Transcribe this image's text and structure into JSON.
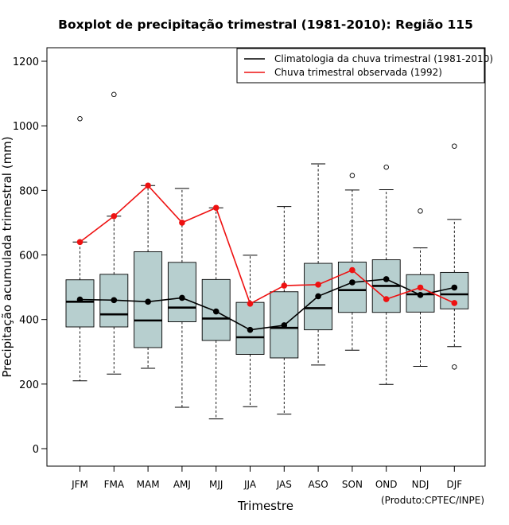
{
  "chart_data": {
    "type": "boxplot",
    "title": "Boxplot de precipitação trimestral (1981-2010): Região 115",
    "xlabel": "Trimestre",
    "ylabel": "Precipitação acumulada trimestral (mm)",
    "ylim": [
      -55,
      1240
    ],
    "yticks": [
      0,
      200,
      400,
      600,
      800,
      1000,
      1200
    ],
    "categories": [
      "JFM",
      "FMA",
      "MAM",
      "AMJ",
      "MJJ",
      "JJA",
      "JAS",
      "ASO",
      "SON",
      "OND",
      "NDJ",
      "DJF"
    ],
    "boxes": [
      {
        "q1": 377,
        "median": 455,
        "q3": 523,
        "whisker_low": 210,
        "whisker_high": 640,
        "outliers": [
          1022
        ]
      },
      {
        "q1": 377,
        "median": 416,
        "q3": 540,
        "whisker_low": 231,
        "whisker_high": 720,
        "outliers": [
          1097
        ]
      },
      {
        "q1": 313,
        "median": 397,
        "q3": 610,
        "whisker_low": 249,
        "whisker_high": 815,
        "outliers": []
      },
      {
        "q1": 393,
        "median": 437,
        "q3": 577,
        "whisker_low": 128,
        "whisker_high": 806,
        "outliers": []
      },
      {
        "q1": 335,
        "median": 403,
        "q3": 524,
        "whisker_low": 92,
        "whisker_high": 746,
        "outliers": []
      },
      {
        "q1": 292,
        "median": 345,
        "q3": 453,
        "whisker_low": 130,
        "whisker_high": 599,
        "outliers": []
      },
      {
        "q1": 281,
        "median": 374,
        "q3": 486,
        "whisker_low": 107,
        "whisker_high": 750,
        "outliers": []
      },
      {
        "q1": 368,
        "median": 435,
        "q3": 574,
        "whisker_low": 259,
        "whisker_high": 882,
        "outliers": []
      },
      {
        "q1": 422,
        "median": 491,
        "q3": 578,
        "whisker_low": 305,
        "whisker_high": 801,
        "outliers": [
          846
        ]
      },
      {
        "q1": 422,
        "median": 504,
        "q3": 585,
        "whisker_low": 199,
        "whisker_high": 802,
        "outliers": [
          872
        ]
      },
      {
        "q1": 423,
        "median": 478,
        "q3": 539,
        "whisker_low": 255,
        "whisker_high": 622,
        "outliers": [
          736
        ]
      },
      {
        "q1": 433,
        "median": 478,
        "q3": 546,
        "whisker_low": 316,
        "whisker_high": 710,
        "outliers": [
          253,
          937
        ]
      }
    ],
    "series": [
      {
        "name": "Climatologia da chuva trimestral (1981-2010)",
        "color": "#000000",
        "values": [
          462,
          460,
          455,
          467,
          425,
          368,
          382,
          472,
          515,
          525,
          476,
          499
        ]
      },
      {
        "name": "Chuva trimestral observada (1992)",
        "color": "#ee1111",
        "values": [
          640,
          720,
          815,
          700,
          746,
          449,
          505,
          508,
          553,
          463,
          499,
          451
        ]
      }
    ],
    "box_fill": "#b7cfcf",
    "legend_position": "top-right",
    "credit": "(Produto:CPTEC/INPE)"
  }
}
